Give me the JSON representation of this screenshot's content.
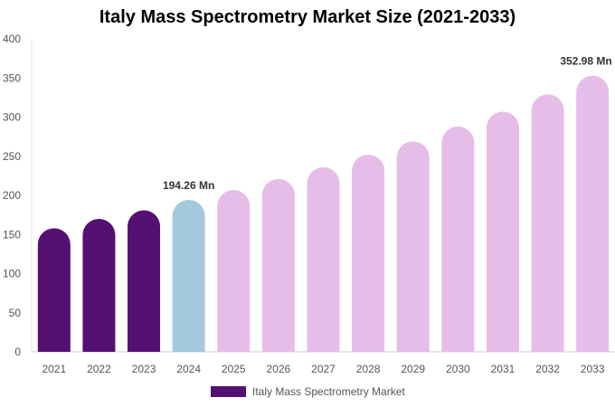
{
  "chart_data": {
    "type": "bar",
    "title": "Italy Mass Spectrometry Market Size (2021-2033)",
    "categories": [
      "2021",
      "2022",
      "2023",
      "2024",
      "2025",
      "2026",
      "2027",
      "2028",
      "2029",
      "2030",
      "2031",
      "2032",
      "2033"
    ],
    "series": [
      {
        "name": "Italy Mass Spectrometry Market",
        "values": [
          158,
          170,
          181,
          194.26,
          207,
          221,
          236,
          252,
          269,
          288,
          307,
          329,
          352.98
        ]
      }
    ],
    "data_labels": {
      "3": "194.26 Mn",
      "12": "352.98 Mn"
    },
    "yticks": [
      0,
      50,
      100,
      150,
      200,
      250,
      300,
      350,
      400
    ],
    "ylim": [
      0,
      400
    ],
    "grid": false,
    "legend_position": "bottom",
    "colors": {
      "historical": "#551071",
      "base_year": "#a3c9df",
      "forecast": "#e6bde9"
    }
  }
}
